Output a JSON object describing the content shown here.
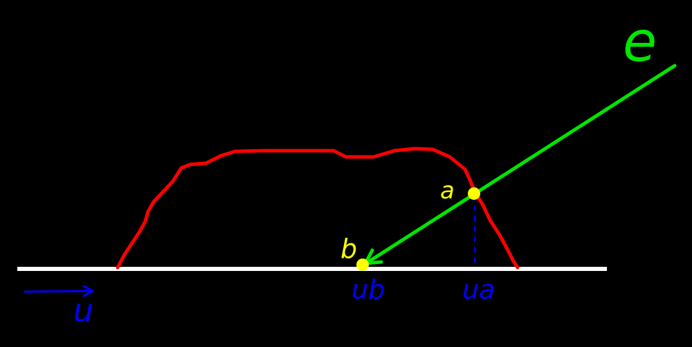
{
  "colors": {
    "background": "#000000",
    "ground": "#ffffff",
    "terrain": "#ff0000",
    "ray": "#00e600",
    "point": "#ffff00",
    "axis_label": "#0000ff",
    "point_label": "#ffff00",
    "ray_label": "#00e600"
  },
  "labels": {
    "ray": "e",
    "point_a": "a",
    "point_b": "b",
    "u_a": "ua",
    "u_b": "ub",
    "axis": "u"
  }
}
